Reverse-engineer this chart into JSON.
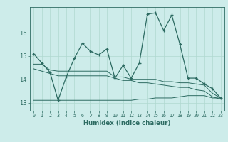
{
  "xlabel": "Humidex (Indice chaleur)",
  "bg_color": "#cdecea",
  "line_color": "#2d6b62",
  "grid_color": "#b0d8d0",
  "x_ticks": [
    0,
    1,
    2,
    3,
    4,
    5,
    6,
    7,
    8,
    9,
    10,
    11,
    12,
    13,
    14,
    15,
    16,
    17,
    18,
    19,
    20,
    21,
    22,
    23
  ],
  "y_ticks": [
    13,
    14,
    15,
    16
  ],
  "ylim": [
    12.65,
    17.1
  ],
  "xlim": [
    -0.5,
    23.5
  ],
  "main_line": [
    15.1,
    14.7,
    14.3,
    13.1,
    14.1,
    14.9,
    15.55,
    15.2,
    15.05,
    15.3,
    14.05,
    14.6,
    14.05,
    14.7,
    16.8,
    16.85,
    16.1,
    16.75,
    15.5,
    14.05,
    14.05,
    13.8,
    13.6,
    13.2
  ],
  "line2": [
    14.65,
    14.65,
    14.4,
    14.35,
    14.35,
    14.35,
    14.35,
    14.35,
    14.35,
    14.35,
    14.1,
    14.1,
    14.0,
    14.0,
    14.0,
    14.0,
    13.9,
    13.9,
    13.85,
    13.85,
    13.8,
    13.75,
    13.4,
    13.2
  ],
  "line3": [
    14.45,
    14.35,
    14.25,
    14.15,
    14.15,
    14.15,
    14.15,
    14.15,
    14.15,
    14.15,
    14.05,
    13.95,
    13.95,
    13.85,
    13.85,
    13.8,
    13.75,
    13.7,
    13.65,
    13.65,
    13.55,
    13.5,
    13.25,
    13.15
  ],
  "line4": [
    13.1,
    13.1,
    13.1,
    13.1,
    13.1,
    13.1,
    13.1,
    13.1,
    13.1,
    13.1,
    13.1,
    13.1,
    13.1,
    13.15,
    13.15,
    13.2,
    13.2,
    13.2,
    13.25,
    13.3,
    13.3,
    13.3,
    13.2,
    13.2
  ]
}
